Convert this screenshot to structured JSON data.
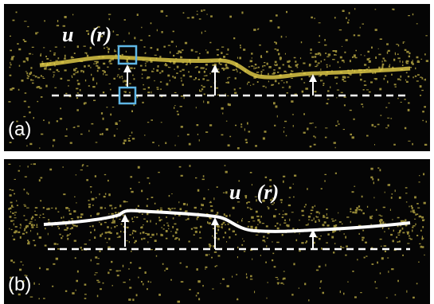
{
  "panels": [
    {
      "label": "(a)",
      "field_label": "u⃗(r)"
    },
    {
      "label": "(b)",
      "field_label": "u⃗(r)"
    }
  ]
}
